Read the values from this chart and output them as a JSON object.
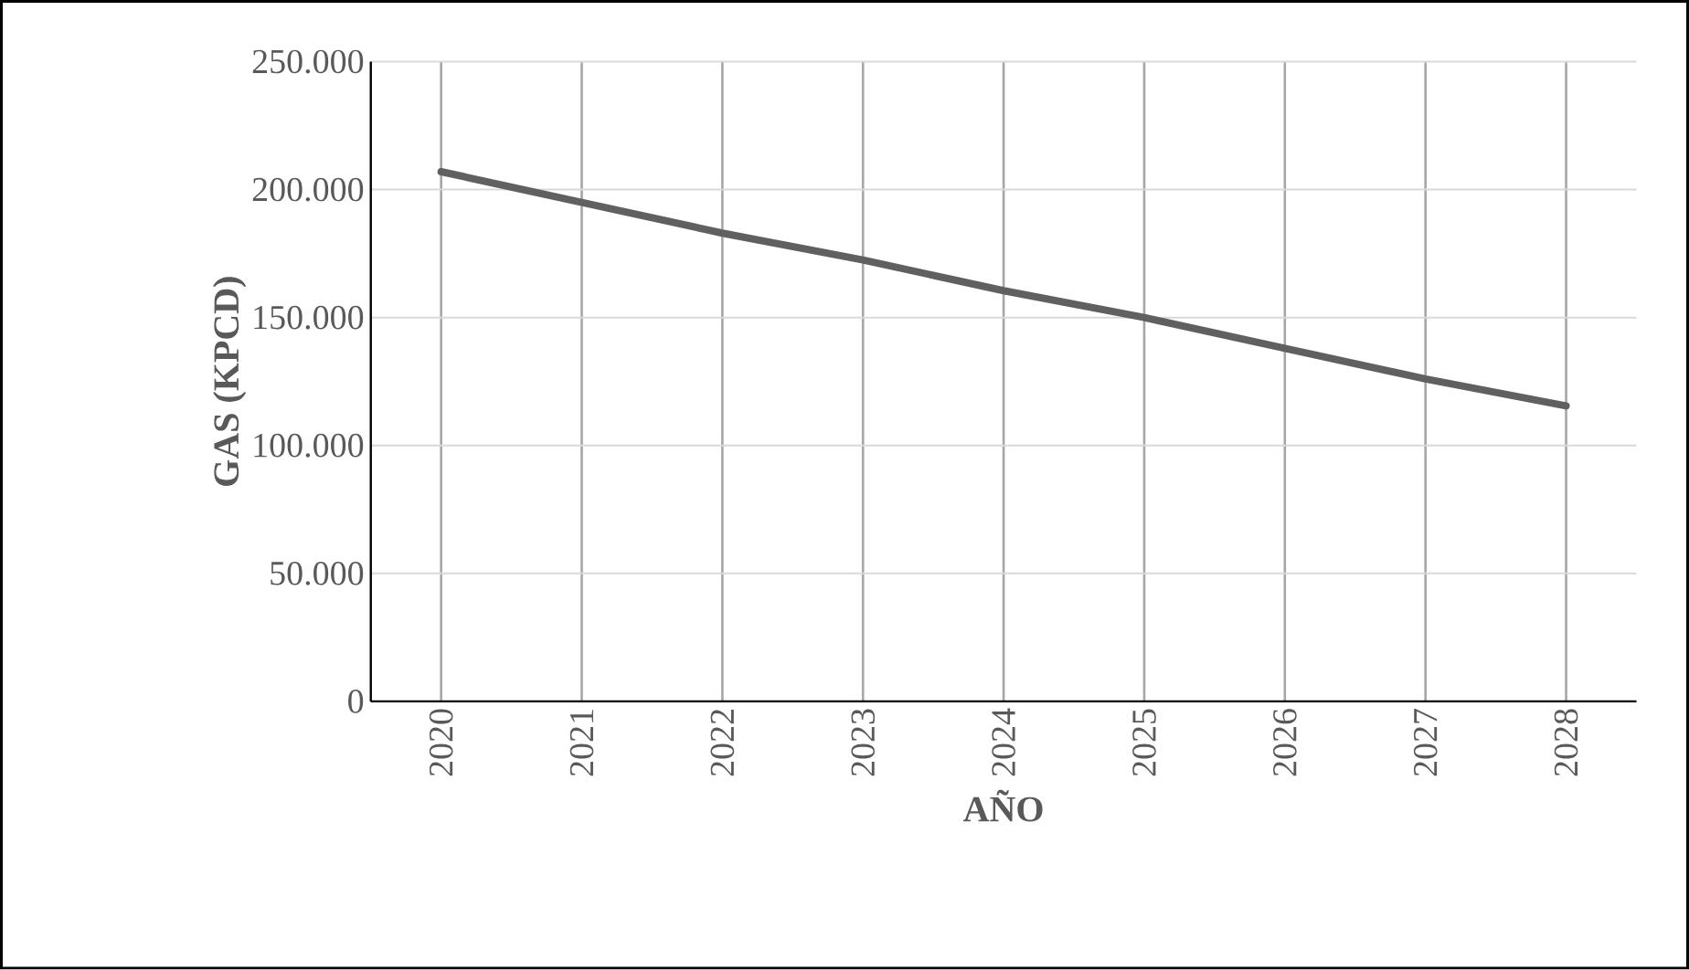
{
  "chart_data": {
    "type": "line",
    "xlabel": "AÑO",
    "ylabel": "GAS (KPCD)",
    "categories": [
      "2020",
      "2021",
      "2022",
      "2023",
      "2024",
      "2025",
      "2026",
      "2027",
      "2028"
    ],
    "series": [
      {
        "color": "#606060",
        "values": [
          207000,
          195000,
          183000,
          172500,
          160500,
          150000,
          138000,
          126000,
          115500
        ]
      }
    ],
    "ylim": [
      0,
      250000
    ],
    "yticks": [
      0,
      {
        "value": 50000,
        "label": "50.000"
      },
      {
        "value": 100000,
        "label": "100.000"
      },
      {
        "value": 150000,
        "label": "150.000"
      },
      {
        "value": 200000,
        "label": "200.000"
      },
      {
        "value": 250000,
        "label": "250.000"
      }
    ],
    "grid": true,
    "marker": "none",
    "line_style": "solid"
  }
}
